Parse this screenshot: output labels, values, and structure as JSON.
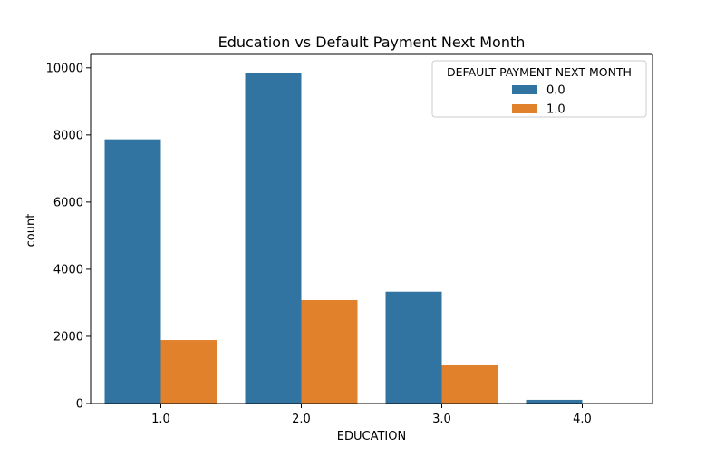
{
  "chart_data": {
    "type": "bar",
    "title": "Education vs Default Payment Next Month",
    "xlabel": "EDUCATION",
    "ylabel": "count",
    "categories": [
      "1.0",
      "2.0",
      "3.0",
      "4.0"
    ],
    "series": [
      {
        "name": "0.0",
        "color": "#3274a1",
        "values": [
          7870,
          9860,
          3330,
          110
        ]
      },
      {
        "name": "1.0",
        "color": "#e1812c",
        "values": [
          1890,
          3080,
          1150,
          10
        ]
      }
    ],
    "ylim": [
      0,
      10400
    ],
    "yticks": [
      0,
      2000,
      4000,
      6000,
      8000,
      10000
    ],
    "legend": {
      "title": "DEFAULT PAYMENT NEXT MONTH",
      "position": "top-right"
    },
    "grid": false
  }
}
